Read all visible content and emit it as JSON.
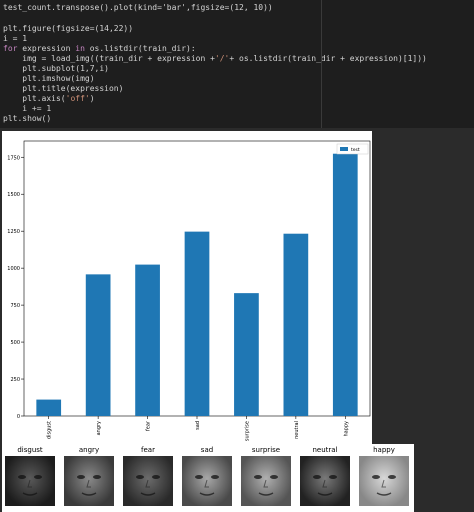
{
  "code": {
    "line1": "test_count.transpose().plot(kind='bar',figsize=(12, 10))",
    "line2": "",
    "line3": "plt.figure(figsize=(14,22))",
    "line4": "i = 1",
    "line5_kw": "for",
    "line5_a": " expression ",
    "line5_kw2": "in",
    "line5_b": " os.listdir(train_dir):",
    "line6_a": "    img = load_img((train_dir + expression +",
    "line6_str": "'/'",
    "line6_b": "+ os.listdir(train_dir + expression)[1]))",
    "line7_a": "    plt.subplot(1,7,i)",
    "line8": "    plt.imshow(img)",
    "line9": "    plt.title(expression)",
    "line10_a": "    plt.axis(",
    "line10_str": "'off'",
    "line10_b": ")",
    "line11_a": "    i += 1",
    "line12": "plt.show()"
  },
  "chart_data": {
    "type": "bar",
    "categories": [
      "disgust",
      "angry",
      "fear",
      "sad",
      "surprise",
      "neutral",
      "happy"
    ],
    "series": [
      {
        "name": "test",
        "values": [
          111,
          958,
          1024,
          1247,
          831,
          1233,
          1774
        ]
      }
    ],
    "yticks": [
      0,
      250,
      500,
      750,
      1000,
      1250,
      1500,
      1750
    ],
    "ylim": [
      0,
      1860
    ],
    "legend": "top-right",
    "color": "#1f77b4"
  },
  "faces": [
    {
      "label": "disgust"
    },
    {
      "label": "angry"
    },
    {
      "label": "fear"
    },
    {
      "label": "sad"
    },
    {
      "label": "surprise"
    },
    {
      "label": "neutral"
    },
    {
      "label": "happy"
    }
  ]
}
